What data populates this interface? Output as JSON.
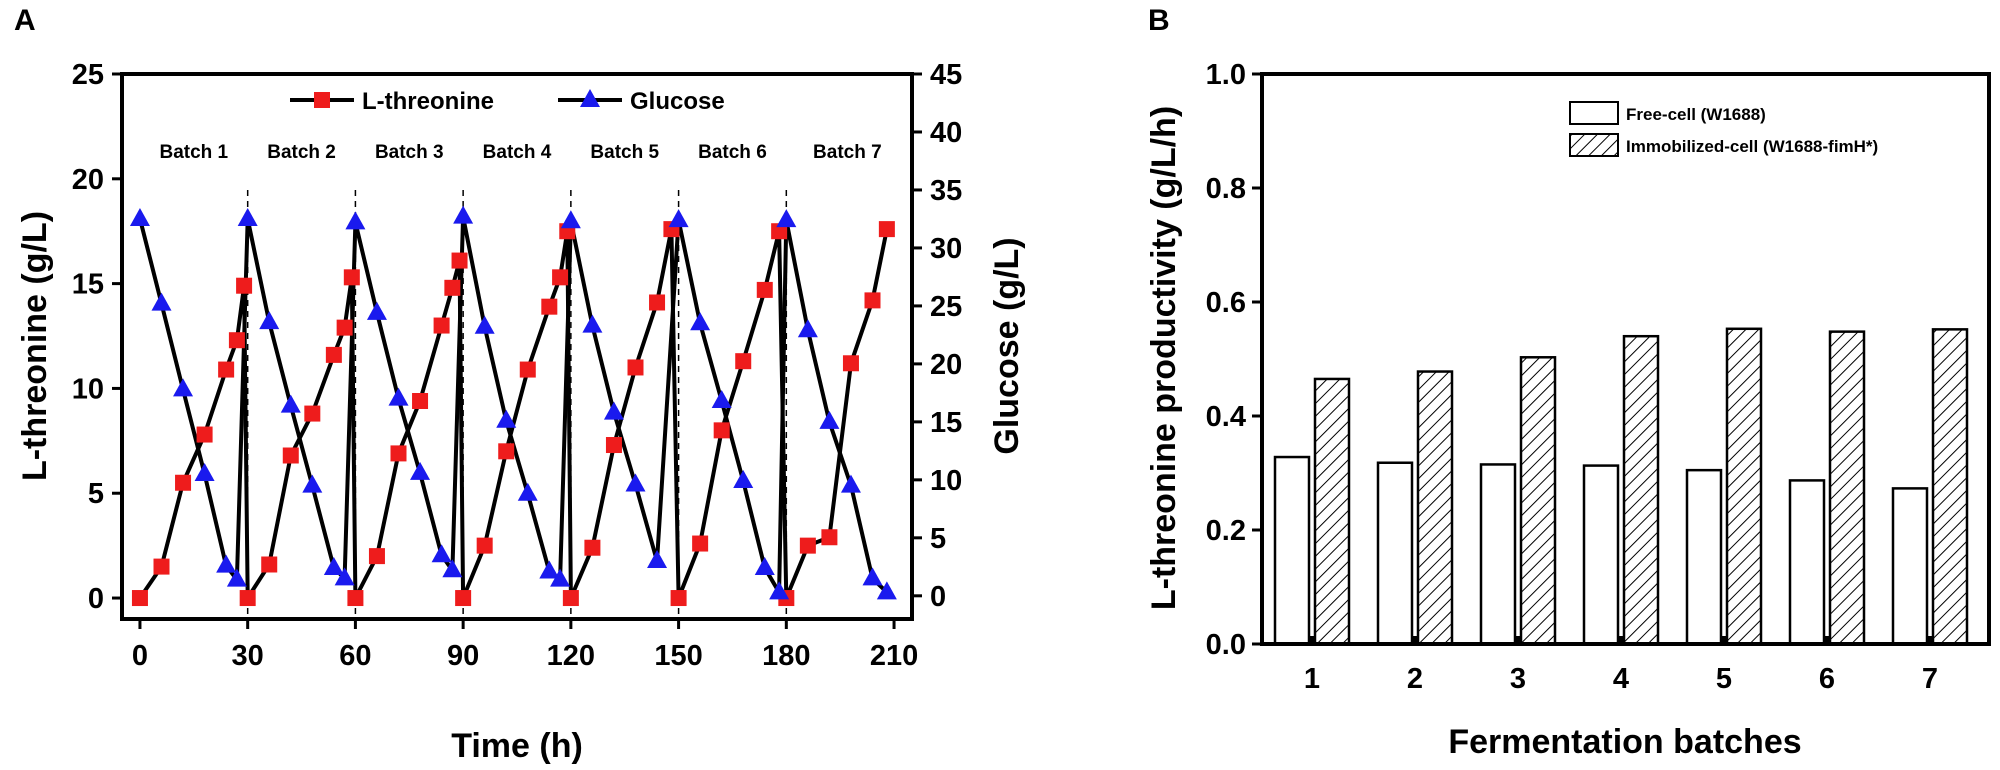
{
  "panel_a_letter": "A",
  "panel_b_letter": "B",
  "chart_data": [
    {
      "type": "line",
      "panel": "A",
      "title": "",
      "xlabel": "Time (h)",
      "ylabel": "L-threonine (g/L)",
      "ylabel_right": "Glucose (g/L)",
      "xlim": [
        -5,
        215
      ],
      "ylim": [
        -1,
        25
      ],
      "ylim_right": [
        -2,
        45
      ],
      "xticks": [
        0,
        30,
        60,
        90,
        120,
        150,
        180,
        210
      ],
      "yticks": [
        0,
        5,
        10,
        15,
        20,
        25
      ],
      "yticks_right": [
        0,
        5,
        10,
        15,
        20,
        25,
        30,
        35,
        40,
        45
      ],
      "batch_dividers": [
        30,
        60,
        90,
        120,
        150,
        180
      ],
      "batches": [
        {
          "label": "Batch 1",
          "x": 15
        },
        {
          "label": "Batch 2",
          "x": 45
        },
        {
          "label": "Batch 3",
          "x": 75
        },
        {
          "label": "Batch 4",
          "x": 105
        },
        {
          "label": "Batch 5",
          "x": 135
        },
        {
          "label": "Batch 6",
          "x": 165
        },
        {
          "label": "Batch 7",
          "x": 197
        }
      ],
      "legend": [
        "L-threonine",
        "Glucose"
      ],
      "series": [
        {
          "name": "L-threonine",
          "axis": "left",
          "color": "#ee1c1c",
          "marker": "square",
          "x": [
            0,
            6,
            12,
            18,
            24,
            27,
            29,
            30,
            36,
            42,
            48,
            54,
            57,
            59,
            60,
            66,
            72,
            78,
            84,
            87,
            89,
            90,
            96,
            102,
            108,
            114,
            117,
            119,
            120,
            126,
            132,
            138,
            144,
            148,
            150,
            156,
            162,
            168,
            174,
            178,
            180,
            186,
            192,
            198,
            204,
            208
          ],
          "values": [
            0,
            1.5,
            5.5,
            7.8,
            10.9,
            12.3,
            14.9,
            0,
            1.6,
            6.8,
            8.8,
            11.6,
            12.9,
            15.3,
            0,
            2.0,
            6.9,
            9.4,
            13.0,
            14.8,
            16.1,
            0,
            2.5,
            7.0,
            10.9,
            13.9,
            15.3,
            17.5,
            0,
            2.4,
            7.3,
            11.0,
            14.1,
            17.6,
            0,
            2.6,
            8.0,
            11.3,
            14.7,
            17.5,
            0,
            2.5,
            2.9,
            11.2,
            14.2,
            17.6
          ]
        },
        {
          "name": "Glucose",
          "axis": "right",
          "color": "#1a1aee",
          "marker": "triangle",
          "x": [
            0,
            6,
            12,
            18,
            24,
            27,
            30,
            36,
            42,
            48,
            54,
            57,
            60,
            66,
            72,
            78,
            84,
            87,
            90,
            96,
            102,
            108,
            114,
            117,
            120,
            126,
            132,
            138,
            144,
            150,
            156,
            162,
            168,
            174,
            178,
            180,
            186,
            192,
            198,
            204,
            208
          ],
          "values": [
            32.5,
            25.2,
            17.8,
            10.5,
            2.6,
            1.4,
            32.5,
            23.6,
            16.4,
            9.5,
            2.4,
            1.5,
            32.2,
            24.4,
            17.0,
            10.6,
            3.5,
            2.2,
            32.7,
            23.2,
            15.1,
            8.8,
            2.1,
            1.4,
            32.3,
            23.3,
            15.8,
            9.6,
            3.0,
            32.4,
            23.5,
            16.8,
            9.9,
            2.4,
            0.3,
            32.4,
            22.9,
            15.0,
            9.5,
            1.5,
            0.3
          ]
        }
      ]
    },
    {
      "type": "bar",
      "panel": "B",
      "title": "",
      "xlabel": "Fermentation batches",
      "ylabel": "L-threonine productivity (g/L/h)",
      "ylim": [
        0,
        1.0
      ],
      "yticks": [
        "0.0",
        "0.2",
        "0.4",
        "0.6",
        "0.8",
        "1.0"
      ],
      "categories": [
        "1",
        "2",
        "3",
        "4",
        "5",
        "6",
        "7"
      ],
      "legend_position": "top-right",
      "series": [
        {
          "name": "Free-cell (W1688)",
          "fill": "white",
          "values": [
            0.328,
            0.318,
            0.315,
            0.313,
            0.305,
            0.287,
            0.273
          ]
        },
        {
          "name": "Immobilized-cell (W1688-fimH*)",
          "fill": "hatched",
          "values": [
            0.465,
            0.478,
            0.503,
            0.54,
            0.553,
            0.548,
            0.552
          ]
        }
      ]
    }
  ]
}
